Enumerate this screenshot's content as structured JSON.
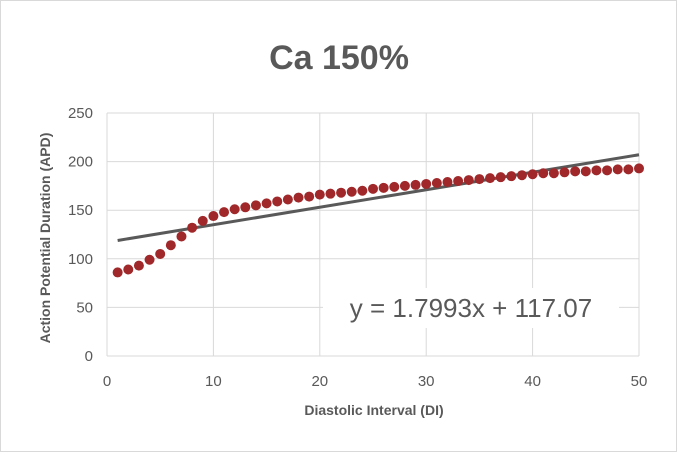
{
  "chart_data": {
    "type": "scatter",
    "title": "Ca 150%",
    "xlabel": "Diastolic Interval (DI)",
    "ylabel": "Action Potential Duration (APD)",
    "xlim": [
      0,
      50
    ],
    "ylim": [
      0,
      250
    ],
    "x_ticks": [
      "0",
      "10",
      "20",
      "30",
      "40",
      "50"
    ],
    "y_ticks": [
      "0",
      "50",
      "100",
      "150",
      "200",
      "250"
    ],
    "grid": true,
    "legend": "none",
    "point_color": "#a0282a",
    "trendline_color": "#595959",
    "series": [
      {
        "x": [
          1,
          2,
          3,
          4,
          5,
          6,
          7,
          8,
          9,
          10,
          11,
          12,
          13,
          14,
          15,
          16,
          17,
          18,
          19,
          20,
          21,
          22,
          23,
          24,
          25,
          26,
          27,
          28,
          29,
          30,
          31,
          32,
          33,
          34,
          35,
          36,
          37,
          38,
          39,
          40,
          41,
          42,
          43,
          44,
          45,
          46,
          47,
          48,
          49,
          50
        ],
        "values": [
          86,
          89,
          93,
          99,
          105,
          114,
          123,
          132,
          139,
          144,
          148,
          151,
          153,
          155,
          157,
          159,
          161,
          163,
          164,
          166,
          167,
          168,
          169,
          170,
          172,
          173,
          174,
          175,
          176,
          177,
          178,
          179,
          180,
          181,
          182,
          183,
          184,
          185,
          186,
          187,
          188,
          188,
          189,
          190,
          190,
          191,
          191,
          192,
          192,
          193
        ]
      }
    ],
    "trendline": {
      "slope": 1.7993,
      "intercept": 117.07,
      "x_range": [
        1,
        50
      ],
      "equation_label": "y = 1.7993x + 117.07"
    }
  }
}
